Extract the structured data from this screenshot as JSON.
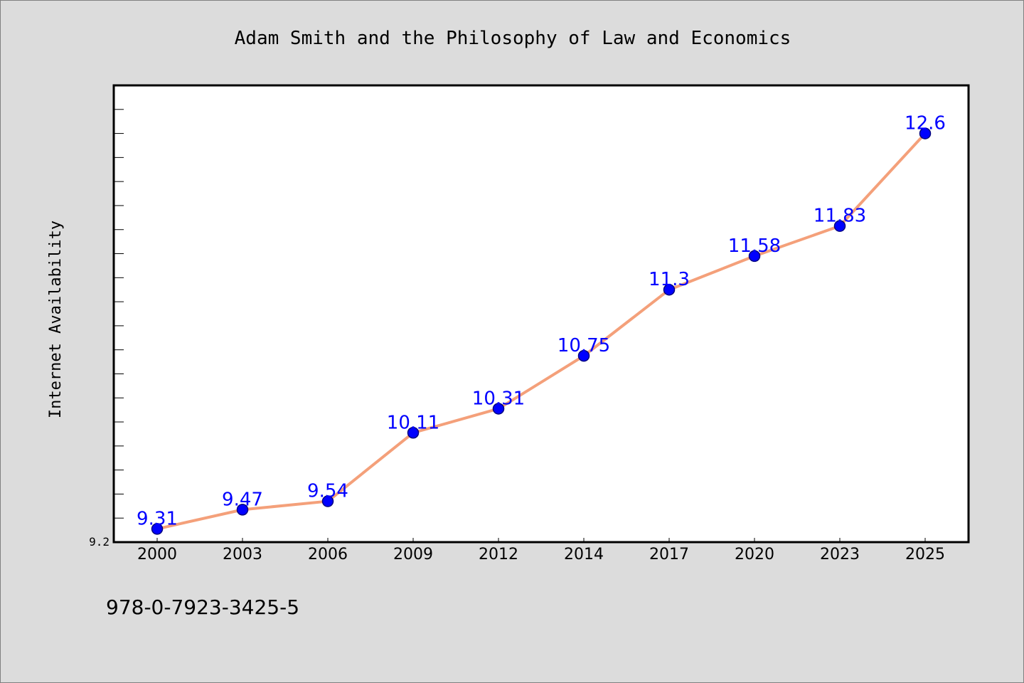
{
  "chart_data": {
    "type": "line",
    "title": "Adam Smith and the Philosophy of Law and Economics",
    "xlabel": "",
    "ylabel": "Internet Availability",
    "categories": [
      "2000",
      "2003",
      "2006",
      "2009",
      "2012",
      "2014",
      "2017",
      "2020",
      "2023",
      "2025"
    ],
    "series": [
      {
        "values": [
          9.31,
          9.47,
          9.54,
          10.11,
          10.31,
          10.75,
          11.3,
          11.58,
          11.83,
          12.6
        ]
      }
    ],
    "data_labels": [
      "9.31",
      "9.47",
      "9.54",
      "10.11",
      "10.31",
      "10.75",
      "11.3",
      "11.58",
      "11.83",
      "12.6"
    ],
    "ylim": [
      9.2,
      13.0
    ],
    "ytick_labels": [
      {
        "value": 9.2,
        "label": "9.2"
      }
    ],
    "minor_tick_step": 0.2,
    "grid": false,
    "colors": {
      "line": "#f4a07a",
      "marker_fill": "#0000ff",
      "marker_edge": "#000080",
      "data_label": "#0000ff",
      "plot_background": "#ffffff",
      "figure_background": "#dcdcdc"
    }
  },
  "footer": {
    "isbn": "978-0-7923-3425-5"
  }
}
